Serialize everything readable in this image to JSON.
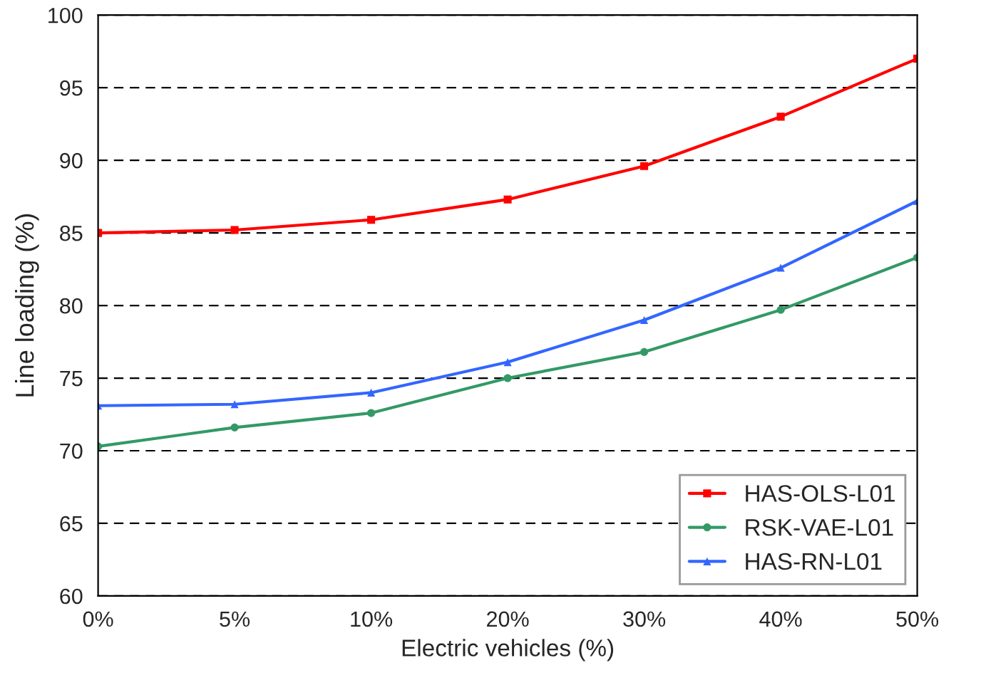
{
  "chart_data": {
    "type": "line",
    "xlabel": "Electric vehicles (%)",
    "ylabel": "Line loading (%)",
    "categories": [
      "0%",
      "5%",
      "10%",
      "20%",
      "30%",
      "40%",
      "50%"
    ],
    "ylim": [
      60,
      100
    ],
    "yticks": [
      60,
      65,
      70,
      75,
      80,
      85,
      90,
      95,
      100
    ],
    "grid": "y",
    "legend": "bottom right",
    "line_style": "solid",
    "series": [
      {
        "name": "HAS-OLS-L01",
        "color": "#ff0000",
        "marker": "square",
        "values": [
          85.0,
          85.2,
          85.9,
          87.3,
          89.6,
          93.0,
          97.0
        ]
      },
      {
        "name": "RSK-VAE-L01",
        "color": "#339966",
        "marker": "circle",
        "values": [
          70.3,
          71.6,
          72.6,
          75.0,
          76.8,
          79.7,
          83.3
        ]
      },
      {
        "name": "HAS-RN-L01",
        "color": "#3366ff",
        "marker": "triangle",
        "values": [
          73.1,
          73.2,
          74.0,
          76.1,
          79.0,
          82.6,
          87.2
        ]
      }
    ]
  }
}
